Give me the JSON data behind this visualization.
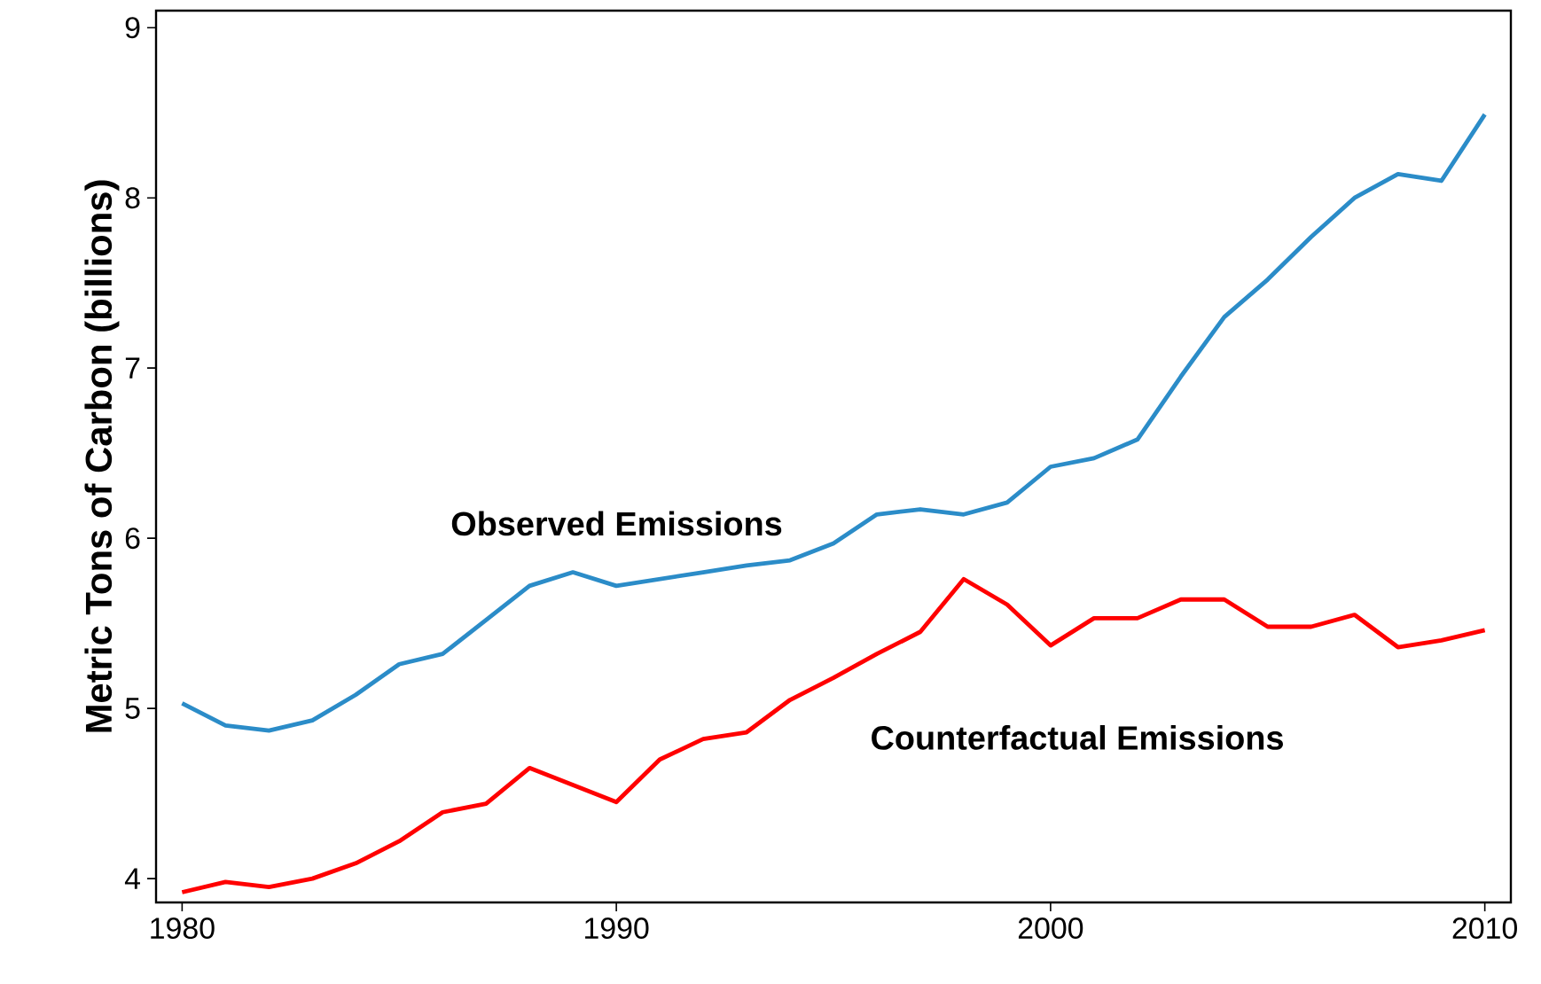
{
  "chart_data": {
    "type": "line",
    "ylabel": "Metric Tons of Carbon (billions)",
    "x": [
      1980,
      1981,
      1982,
      1983,
      1984,
      1985,
      1986,
      1987,
      1988,
      1989,
      1990,
      1991,
      1992,
      1993,
      1994,
      1995,
      1996,
      1997,
      1998,
      1999,
      2000,
      2001,
      2002,
      2003,
      2004,
      2005,
      2006,
      2007,
      2008,
      2009,
      2010
    ],
    "series": [
      {
        "name": "Observed Emissions",
        "color": "#2b8cc8",
        "values": [
          5.03,
          4.9,
          4.87,
          4.93,
          5.08,
          5.26,
          5.32,
          5.52,
          5.72,
          5.8,
          5.72,
          5.76,
          5.8,
          5.84,
          5.87,
          5.97,
          6.14,
          6.17,
          6.14,
          6.21,
          6.42,
          6.47,
          6.58,
          6.95,
          7.3,
          7.52,
          7.77,
          8.0,
          8.14,
          8.1,
          8.49
        ]
      },
      {
        "name": "Counterfactual Emissions",
        "color": "#ff0000",
        "values": [
          3.92,
          3.98,
          3.95,
          4.0,
          4.09,
          4.22,
          4.39,
          4.44,
          4.65,
          4.55,
          4.45,
          4.7,
          4.82,
          4.86,
          5.05,
          5.18,
          5.32,
          5.45,
          5.76,
          5.61,
          5.37,
          5.53,
          5.53,
          5.64,
          5.64,
          5.48,
          5.48,
          5.55,
          5.36,
          5.4,
          5.46
        ]
      }
    ],
    "xlim": [
      1979.4,
      2010.6
    ],
    "ylim": [
      3.86,
      9.1
    ],
    "xticks": [
      1980,
      1990,
      2000,
      2010
    ],
    "yticks": [
      4,
      5,
      6,
      7,
      8,
      9
    ],
    "grid": false,
    "legend": false,
    "marker": "none",
    "line_style": "solid"
  }
}
